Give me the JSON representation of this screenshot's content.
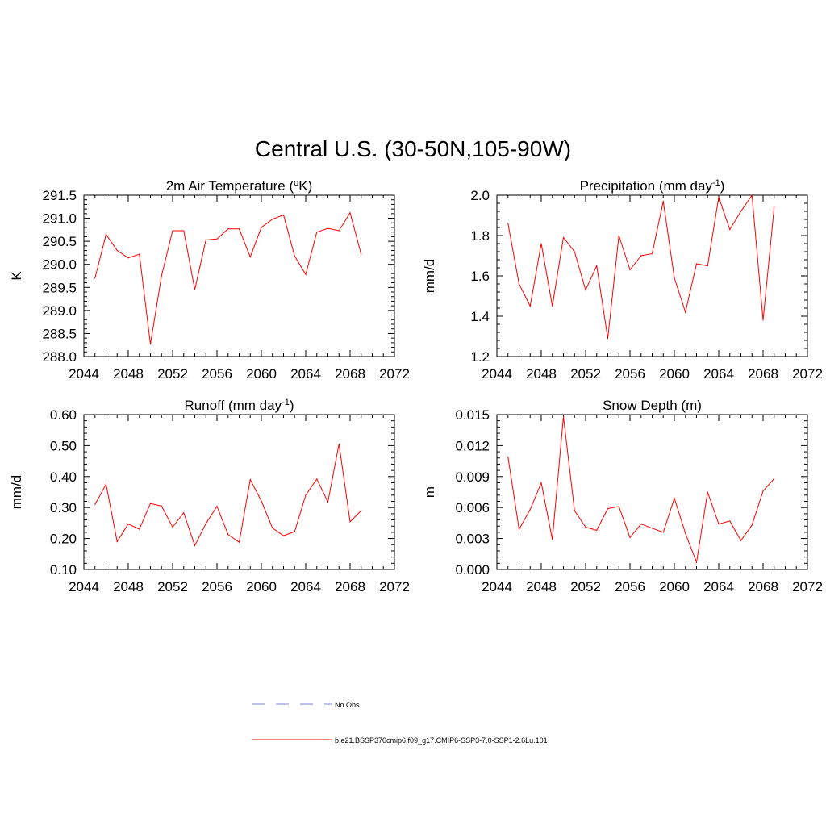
{
  "figure": {
    "title": "Central U.S. (30-50N,105-90W)"
  },
  "colors": {
    "model_line": "#ff0000",
    "obs_line": "#9a9ae0",
    "axis": "#000000"
  },
  "legend": {
    "items": [
      {
        "label": "No Obs",
        "style": "dashed",
        "color": "#9a9ae0"
      },
      {
        "label": "b.e21.BSSP370cmip6.f09_g17.CMIP6-SSP3-7.0-SSP1-2.6Lu.101",
        "style": "solid",
        "color": "#ff0000"
      }
    ]
  },
  "chart_data": [
    {
      "type": "line",
      "title": "2m Air Temperature (°K)",
      "title_html": "2m Air Temperature (<tspan baseline-shift=\"super\" font-size=\"11\">o</tspan>K)",
      "ylabel": "K",
      "xlim": [
        2044,
        2072
      ],
      "ylim": [
        288.0,
        291.5
      ],
      "xticks": [
        "2044",
        "2048",
        "2052",
        "2056",
        "2060",
        "2064",
        "2068",
        "2072"
      ],
      "yticks": [
        "288.0",
        "288.5",
        "289.0",
        "289.5",
        "290.0",
        "290.5",
        "291.0",
        "291.5"
      ],
      "series": [
        {
          "x": [
            2045,
            2046,
            2047,
            2048,
            2049,
            2050,
            2051,
            2052,
            2053,
            2054,
            2055,
            2056,
            2057,
            2058,
            2059,
            2060,
            2061,
            2062,
            2063,
            2064,
            2065,
            2066,
            2067,
            2068,
            2069
          ],
          "values": [
            289.7,
            290.65,
            290.3,
            290.14,
            290.22,
            288.27,
            289.75,
            290.73,
            290.73,
            289.45,
            290.53,
            290.55,
            290.77,
            290.77,
            290.16,
            290.8,
            290.98,
            291.07,
            290.18,
            289.78,
            290.7,
            290.78,
            290.73,
            291.12,
            290.22
          ]
        }
      ]
    },
    {
      "type": "line",
      "title": "Precipitation (mm day-1)",
      "title_html": "Precipitation (mm day<tspan baseline-shift=\"super\" font-size=\"11\">-1</tspan>)",
      "ylabel": "mm/d",
      "xlim": [
        2044,
        2072
      ],
      "ylim": [
        1.2,
        2.0
      ],
      "xticks": [
        "2044",
        "2048",
        "2052",
        "2056",
        "2060",
        "2064",
        "2068",
        "2072"
      ],
      "yticks": [
        "1.2",
        "1.4",
        "1.6",
        "1.8",
        "2.0"
      ],
      "series": [
        {
          "x": [
            2045,
            2046,
            2047,
            2048,
            2049,
            2050,
            2051,
            2052,
            2053,
            2054,
            2055,
            2056,
            2057,
            2058,
            2059,
            2060,
            2061,
            2062,
            2063,
            2064,
            2065,
            2066,
            2067,
            2068,
            2069
          ],
          "values": [
            1.86,
            1.56,
            1.45,
            1.76,
            1.45,
            1.79,
            1.72,
            1.53,
            1.65,
            1.29,
            1.8,
            1.63,
            1.7,
            1.71,
            1.97,
            1.59,
            1.42,
            1.66,
            1.65,
            1.99,
            1.83,
            1.92,
            2.0,
            1.38,
            1.94
          ]
        }
      ]
    },
    {
      "type": "line",
      "title": "Runoff (mm day-1)",
      "title_html": "Runoff (mm day<tspan baseline-shift=\"super\" font-size=\"11\">-1</tspan>)",
      "ylabel": "mm/d",
      "xlim": [
        2044,
        2072
      ],
      "ylim": [
        0.1,
        0.6
      ],
      "xticks": [
        "2044",
        "2048",
        "2052",
        "2056",
        "2060",
        "2064",
        "2068",
        "2072"
      ],
      "yticks": [
        "0.10",
        "0.20",
        "0.30",
        "0.40",
        "0.50",
        "0.60"
      ],
      "series": [
        {
          "x": [
            2045,
            2046,
            2047,
            2048,
            2049,
            2050,
            2051,
            2052,
            2053,
            2054,
            2055,
            2056,
            2057,
            2058,
            2059,
            2060,
            2061,
            2062,
            2063,
            2064,
            2065,
            2066,
            2067,
            2068,
            2069
          ],
          "values": [
            0.31,
            0.375,
            0.19,
            0.247,
            0.23,
            0.313,
            0.305,
            0.237,
            0.283,
            0.177,
            0.248,
            0.304,
            0.213,
            0.188,
            0.39,
            0.321,
            0.234,
            0.209,
            0.222,
            0.34,
            0.392,
            0.318,
            0.505,
            0.254,
            0.29
          ]
        }
      ]
    },
    {
      "type": "line",
      "title": "Snow Depth (m)",
      "title_html": "Snow Depth (m)",
      "ylabel": "m",
      "xlim": [
        2044,
        2072
      ],
      "ylim": [
        0.0,
        0.015
      ],
      "xticks": [
        "2044",
        "2048",
        "2052",
        "2056",
        "2060",
        "2064",
        "2068",
        "2072"
      ],
      "yticks": [
        "0.000",
        "0.003",
        "0.006",
        "0.009",
        "0.012",
        "0.015"
      ],
      "series": [
        {
          "x": [
            2045,
            2046,
            2047,
            2048,
            2049,
            2050,
            2051,
            2052,
            2053,
            2054,
            2055,
            2056,
            2057,
            2058,
            2059,
            2060,
            2061,
            2062,
            2063,
            2064,
            2065,
            2066,
            2067,
            2068,
            2069
          ],
          "values": [
            0.0109,
            0.0039,
            0.0058,
            0.0084,
            0.0029,
            0.0148,
            0.0057,
            0.0041,
            0.0038,
            0.0059,
            0.0061,
            0.0031,
            0.0044,
            0.004,
            0.0036,
            0.0069,
            0.0035,
            0.0007,
            0.0075,
            0.0044,
            0.0047,
            0.0028,
            0.0043,
            0.0076,
            0.0088
          ]
        }
      ]
    }
  ]
}
